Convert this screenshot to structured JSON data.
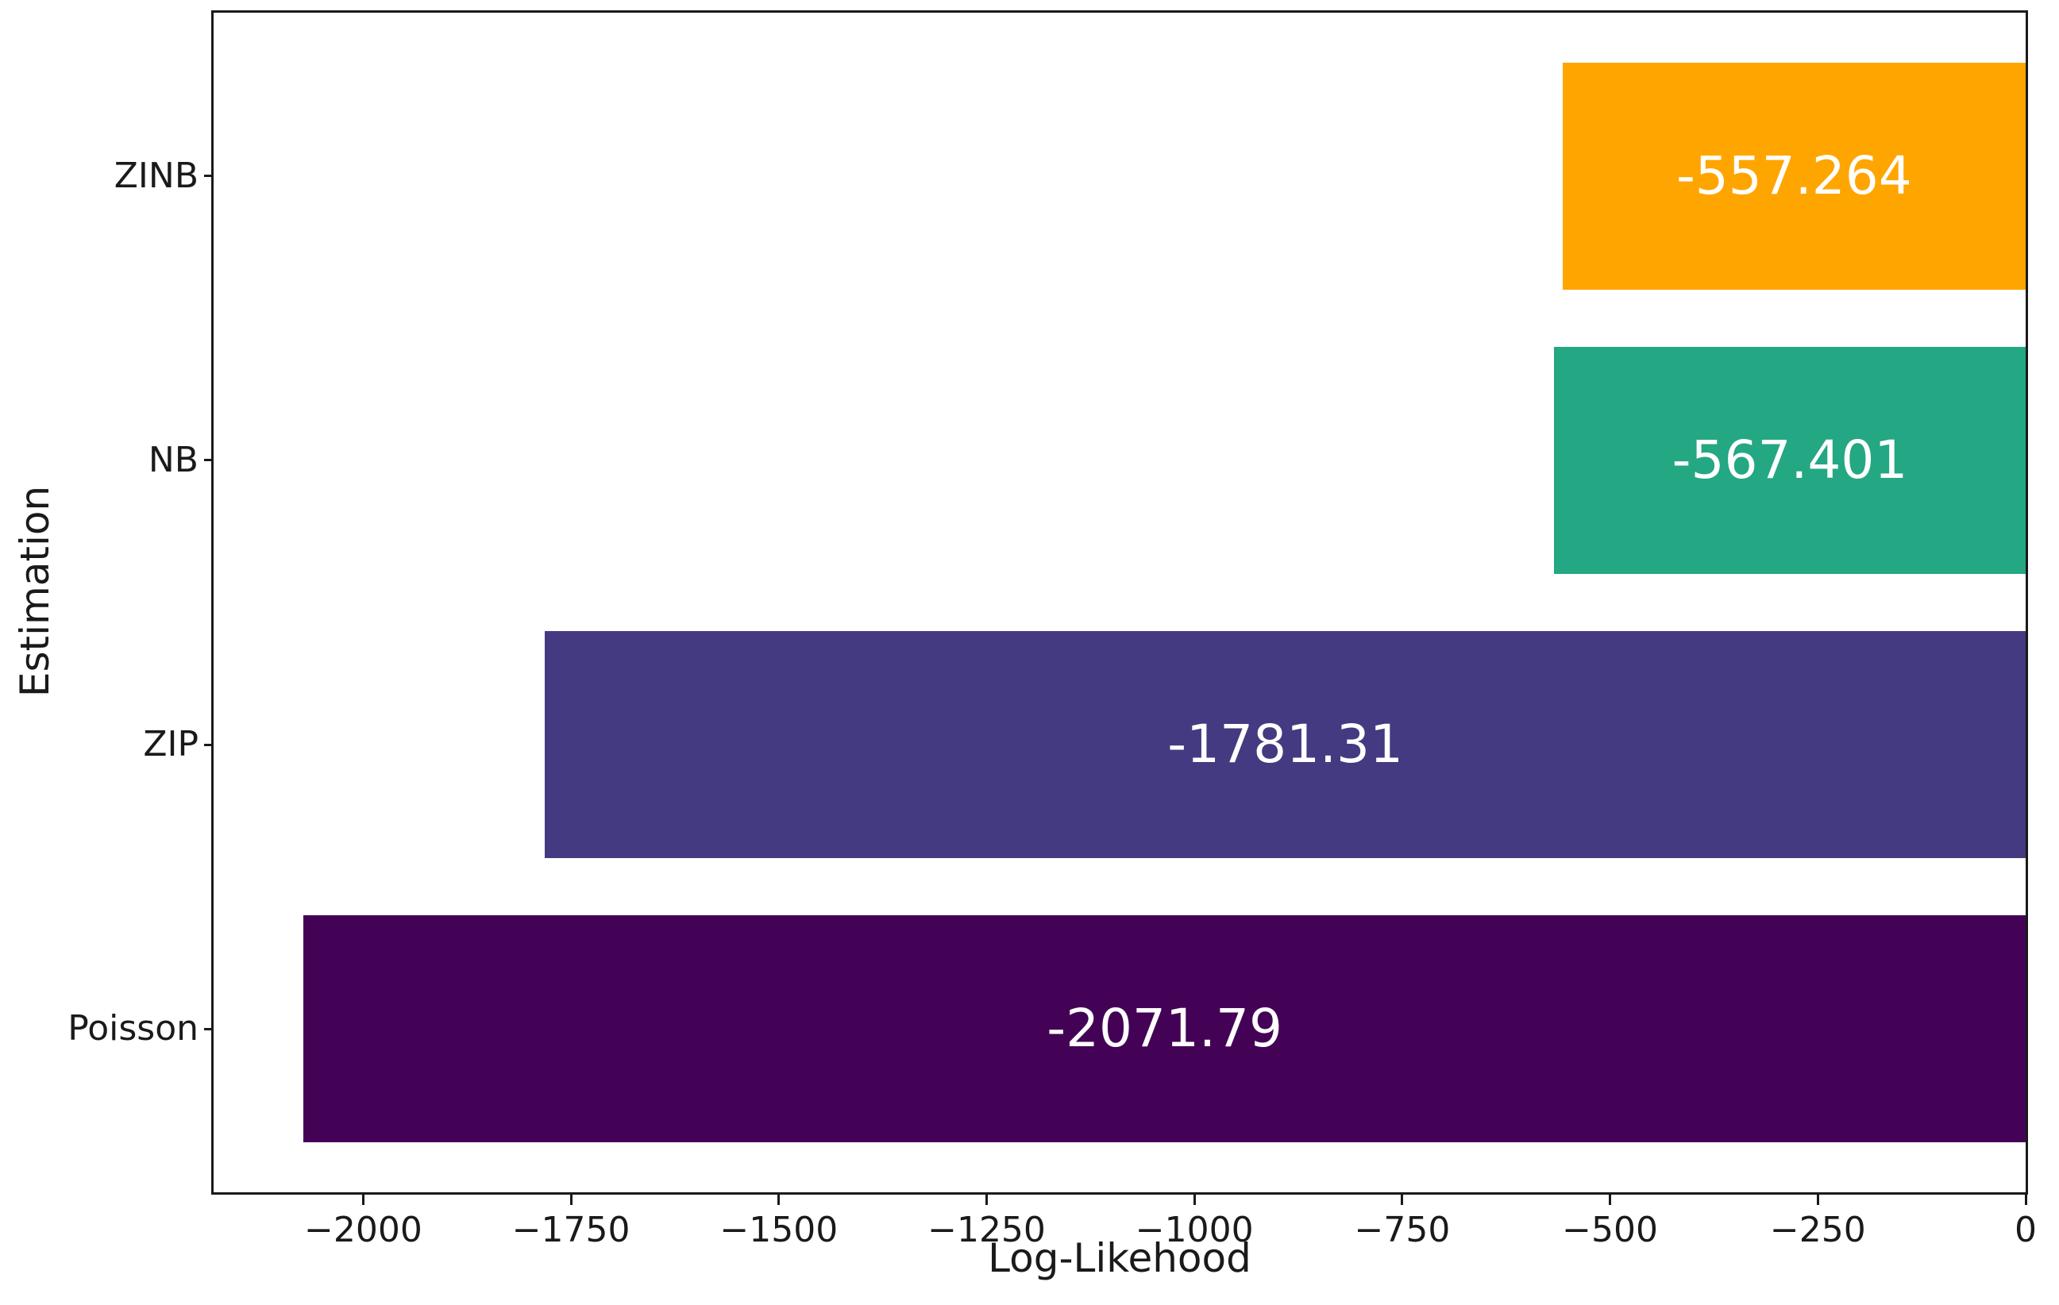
{
  "figure": {
    "background": "#ffffff",
    "spine_color": "#1a1a1a",
    "text_color": "#1a1a1a"
  },
  "chart_data": {
    "type": "bar",
    "orientation": "horizontal",
    "title": "",
    "xlabel": "Log-Likehood",
    "ylabel": "Estimation",
    "categories": [
      "Poisson",
      "ZIP",
      "NB",
      "ZINB"
    ],
    "values": [
      -2071.79,
      -1781.31,
      -567.401,
      -557.264
    ],
    "bar_value_labels": [
      "-2071.79",
      "-1781.31",
      "-567.401",
      "-557.264"
    ],
    "bar_colors": [
      "#440256",
      "#443A81",
      "#24A783",
      "#FFA500"
    ],
    "bar_label_color": "#ffffff",
    "xlim": [
      -2180,
      0
    ],
    "xticks": [
      -2000,
      -1750,
      -1500,
      -1250,
      -1000,
      -750,
      -500,
      -250,
      0
    ],
    "xtick_labels": [
      "−2000",
      "−1750",
      "−1500",
      "−1250",
      "−1000",
      "−750",
      "−500",
      "−250",
      "0"
    ],
    "ylim_units": [
      -0.575,
      3.575
    ],
    "bar_height_frac": 0.8,
    "grid": false,
    "legend": "none"
  }
}
